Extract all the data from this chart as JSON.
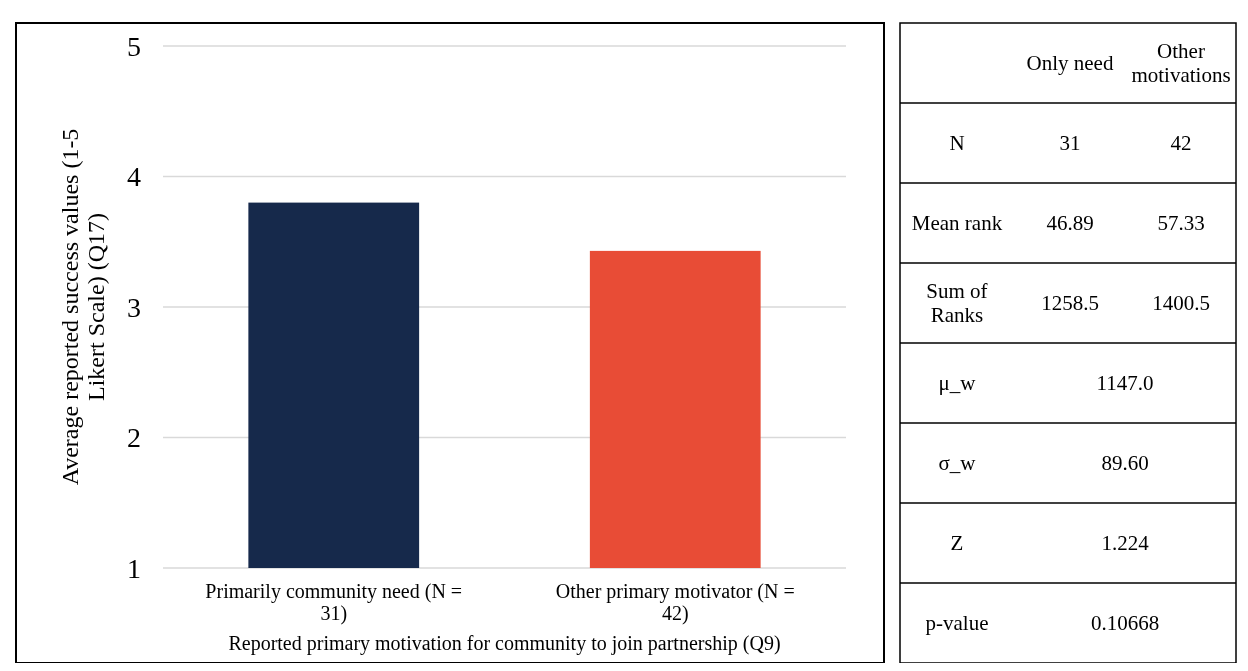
{
  "chart_data": [
    {
      "type": "bar",
      "xlabel": "Reported primary motivation for community to join partnership (Q9)",
      "ylabel": "Average reported success values (1-5 Likert Scale) (Q17)",
      "categories": [
        "Primarily community need (N = 31)",
        "Other primary motivator (N = 42)"
      ],
      "values": [
        3.8,
        3.43
      ],
      "colors": [
        "#16294b",
        "#e84c36"
      ],
      "ylim": [
        1,
        5
      ],
      "yticks": [
        1,
        2,
        3,
        4,
        5
      ],
      "grid": "y"
    },
    {
      "type": "other",
      "annotations": [
        "Only need",
        "Other motivations",
        "N",
        "31",
        "42",
        "Mean rank",
        "46.89",
        "57.33",
        "Sum of Ranks",
        "1258.5",
        "1400.5",
        "μ_w",
        "1147.0",
        "σ_w",
        "89.60",
        "Z",
        "1.224",
        "p-value",
        "0.10668"
      ]
    }
  ]
}
